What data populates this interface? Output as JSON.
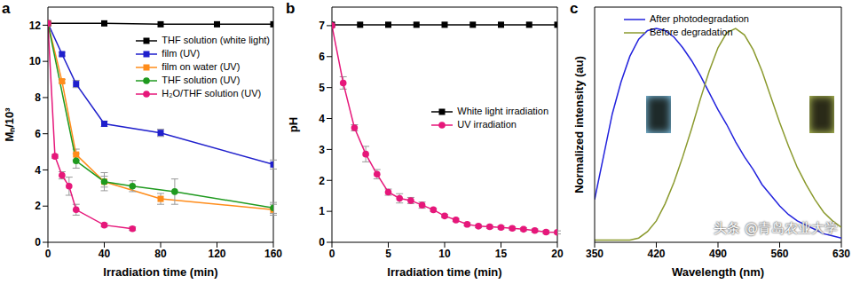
{
  "chart_data": [
    {
      "type": "line",
      "title": "a",
      "x_label": "Irradiation time (min)",
      "y_label": "Mₙ/10³",
      "xlim": [
        0,
        160
      ],
      "xticks": [
        0,
        40,
        80,
        120,
        160
      ],
      "ylim": [
        0,
        13
      ],
      "yticks": [
        0,
        2,
        4,
        6,
        8,
        10,
        12
      ],
      "legend": "upper right",
      "series": [
        {
          "name": "THF solution (white light)",
          "color": "#000000",
          "marker": "square",
          "x": [
            0,
            40,
            80,
            120,
            160
          ],
          "values": [
            12.1,
            12.1,
            12.05,
            12.05,
            12.05
          ]
        },
        {
          "name": "film (UV)",
          "color": "#1f1fcc",
          "marker": "square",
          "x": [
            0,
            10,
            20,
            40,
            80,
            160
          ],
          "values": [
            12.1,
            10.4,
            8.75,
            6.55,
            6.05,
            4.3
          ],
          "errors": [
            0,
            0.1,
            0.2,
            0.15,
            0.2,
            0.25
          ]
        },
        {
          "name": "film on water (UV)",
          "color": "#ff8c1a",
          "marker": "square",
          "x": [
            0,
            10,
            20,
            40,
            80,
            160
          ],
          "values": [
            12.1,
            8.9,
            4.85,
            3.35,
            2.4,
            1.8
          ],
          "errors": [
            0,
            0.1,
            0.3,
            0.5,
            0.3,
            0.3
          ]
        },
        {
          "name": "THF solution (UV)",
          "color": "#1f9a1f",
          "marker": "circle",
          "x": [
            0,
            20,
            40,
            60,
            90,
            160
          ],
          "values": [
            12.1,
            4.5,
            3.35,
            3.1,
            2.8,
            1.9
          ],
          "errors": [
            0,
            0.4,
            0.3,
            0.3,
            0.7,
            0.3
          ]
        },
        {
          "name": "H₂O/THF solution (UV)",
          "color": "#e6177a",
          "marker": "circle",
          "x": [
            0,
            5,
            10,
            15,
            20,
            40,
            60
          ],
          "values": [
            12.1,
            4.75,
            3.7,
            3.1,
            1.8,
            0.95,
            0.75
          ],
          "errors": [
            0,
            0.1,
            0.2,
            0.5,
            0.3,
            0.1,
            0.1
          ]
        }
      ]
    },
    {
      "type": "line",
      "title": "b",
      "x_label": "Irradiation time (min)",
      "y_label": "pH",
      "xlim": [
        0,
        20
      ],
      "xticks": [
        0,
        5,
        10,
        15,
        20
      ],
      "ylim": [
        0,
        7.6
      ],
      "yticks": [
        0,
        1,
        2,
        3,
        4,
        5,
        6,
        7
      ],
      "legend": "center right",
      "series": [
        {
          "name": "White light irradiation",
          "color": "#000000",
          "marker": "square",
          "x": [
            0,
            2.5,
            5,
            7.5,
            10,
            12.5,
            15,
            17.5,
            20
          ],
          "values": [
            7.03,
            7.03,
            7.03,
            7.03,
            7.03,
            7.03,
            7.03,
            7.03,
            7.03
          ]
        },
        {
          "name": "UV irradiation",
          "color": "#e6177a",
          "marker": "circle",
          "x": [
            0,
            1,
            2,
            3,
            4,
            5,
            6,
            7,
            8,
            9,
            10,
            11,
            12,
            13,
            14,
            15,
            16,
            17,
            18,
            19,
            20
          ],
          "values": [
            7.0,
            5.15,
            3.7,
            2.85,
            2.2,
            1.62,
            1.42,
            1.35,
            1.2,
            1.05,
            0.85,
            0.72,
            0.58,
            0.52,
            0.5,
            0.48,
            0.45,
            0.42,
            0.38,
            0.33,
            0.32
          ],
          "errors": [
            0,
            0.2,
            0.1,
            0.25,
            0.15,
            0.1,
            0.15,
            0.1,
            0.1,
            0.05,
            0.05,
            0.05,
            0.05,
            0.05,
            0.05,
            0.05,
            0.05,
            0.05,
            0.05,
            0.05,
            0.05
          ]
        }
      ]
    },
    {
      "type": "line",
      "title": "c",
      "x_label": "Wavelength (nm)",
      "y_label": "Normalized intensity (au)",
      "xlim": [
        350,
        630
      ],
      "xticks": [
        350,
        420,
        490,
        560,
        630
      ],
      "ylim": [
        0,
        1.1
      ],
      "tick_labels": "x",
      "legend": "upper left",
      "annotations": [
        "头条 @青岛农业大学"
      ],
      "x": [
        350,
        360,
        370,
        380,
        390,
        400,
        410,
        420,
        430,
        440,
        450,
        460,
        470,
        480,
        490,
        500,
        510,
        520,
        530,
        540,
        550,
        560,
        570,
        580,
        590,
        600,
        610,
        620,
        630
      ],
      "series": [
        {
          "name": "After photodegradation",
          "color": "#2222dd",
          "marker": "none",
          "values": [
            0.2,
            0.4,
            0.6,
            0.75,
            0.87,
            0.95,
            0.99,
            1.0,
            0.99,
            0.96,
            0.91,
            0.85,
            0.78,
            0.7,
            0.62,
            0.55,
            0.47,
            0.4,
            0.34,
            0.27,
            0.22,
            0.17,
            0.13,
            0.1,
            0.08,
            0.06,
            0.04,
            0.03,
            0.02
          ]
        },
        {
          "name": "Before degradation",
          "color": "#8b9a2e",
          "marker": "none",
          "values": [
            0.01,
            0.01,
            0.01,
            0.01,
            0.01,
            0.02,
            0.05,
            0.1,
            0.18,
            0.28,
            0.4,
            0.53,
            0.67,
            0.8,
            0.91,
            0.98,
            1.0,
            0.97,
            0.9,
            0.8,
            0.68,
            0.56,
            0.45,
            0.35,
            0.27,
            0.2,
            0.14,
            0.1,
            0.07
          ]
        }
      ]
    }
  ]
}
